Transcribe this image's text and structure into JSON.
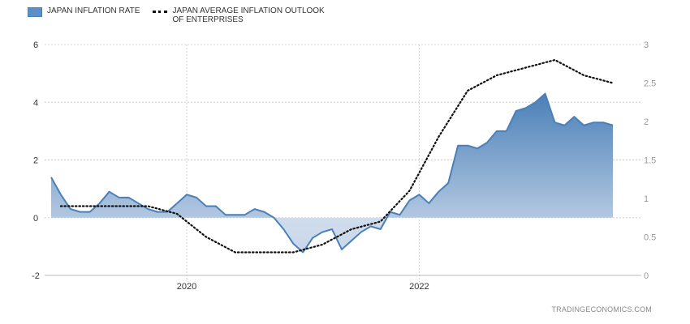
{
  "legend": {
    "series1_label": "JAPAN INFLATION RATE",
    "series2_label": "JAPAN AVERAGE INFLATION OUTLOOK\nOF ENTERPRISES"
  },
  "source": "TRADINGECONOMICS.COM",
  "colors": {
    "area_top": "#4a7fb8",
    "area_bottom": "#e8eef6",
    "line": "#4a7fb8",
    "dots": "#111111",
    "grid": "#cccccc"
  },
  "chart_data": {
    "type": "area",
    "x_range": [
      "2018-11",
      "2023-10"
    ],
    "x_ticks": [
      "2020",
      "2022"
    ],
    "y_left": {
      "range": [
        -2,
        6
      ],
      "ticks": [
        "-2",
        "0",
        "2",
        "4",
        "6"
      ]
    },
    "y_right": {
      "range": [
        0,
        3
      ],
      "ticks": [
        "0",
        "0.5",
        "1",
        "1.5",
        "2",
        "2.5",
        "3"
      ]
    },
    "grid": true,
    "legend_position": "top-left",
    "series": [
      {
        "name": "JAPAN INFLATION RATE",
        "axis": "left",
        "style": "area",
        "x": [
          "2018-11",
          "2018-12",
          "2019-01",
          "2019-02",
          "2019-03",
          "2019-04",
          "2019-05",
          "2019-06",
          "2019-07",
          "2019-08",
          "2019-09",
          "2019-10",
          "2019-11",
          "2019-12",
          "2020-01",
          "2020-02",
          "2020-03",
          "2020-04",
          "2020-05",
          "2020-06",
          "2020-07",
          "2020-08",
          "2020-09",
          "2020-10",
          "2020-11",
          "2020-12",
          "2021-01",
          "2021-02",
          "2021-03",
          "2021-04",
          "2021-05",
          "2021-06",
          "2021-07",
          "2021-08",
          "2021-09",
          "2021-10",
          "2021-11",
          "2021-12",
          "2022-01",
          "2022-02",
          "2022-03",
          "2022-04",
          "2022-05",
          "2022-06",
          "2022-07",
          "2022-08",
          "2022-09",
          "2022-10",
          "2022-11",
          "2022-12",
          "2023-01",
          "2023-02",
          "2023-03",
          "2023-04",
          "2023-05",
          "2023-06",
          "2023-07",
          "2023-08",
          "2023-09"
        ],
        "values": [
          1.4,
          0.8,
          0.3,
          0.2,
          0.2,
          0.5,
          0.9,
          0.7,
          0.7,
          0.5,
          0.3,
          0.2,
          0.2,
          0.5,
          0.8,
          0.7,
          0.4,
          0.4,
          0.1,
          0.1,
          0.1,
          0.3,
          0.2,
          0.0,
          -0.4,
          -0.9,
          -1.2,
          -0.7,
          -0.5,
          -0.4,
          -1.1,
          -0.8,
          -0.5,
          -0.3,
          -0.4,
          0.2,
          0.1,
          0.6,
          0.8,
          0.5,
          0.9,
          1.2,
          2.5,
          2.5,
          2.4,
          2.6,
          3.0,
          3.0,
          3.7,
          3.8,
          4.0,
          4.3,
          3.3,
          3.2,
          3.5,
          3.2,
          3.3,
          3.3,
          3.2
        ]
      },
      {
        "name": "JAPAN AVERAGE INFLATION OUTLOOK OF ENTERPRISES",
        "axis": "right",
        "style": "dotted-line",
        "x": [
          "2018-12",
          "2019-03",
          "2019-06",
          "2019-09",
          "2019-12",
          "2020-03",
          "2020-06",
          "2020-09",
          "2020-12",
          "2021-03",
          "2021-06",
          "2021-09",
          "2021-12",
          "2022-03",
          "2022-06",
          "2022-09",
          "2022-12",
          "2023-03",
          "2023-06",
          "2023-09"
        ],
        "values": [
          0.9,
          0.9,
          0.9,
          0.9,
          0.8,
          0.5,
          0.3,
          0.3,
          0.3,
          0.4,
          0.6,
          0.7,
          1.1,
          1.8,
          2.4,
          2.6,
          2.7,
          2.8,
          2.6,
          2.5
        ]
      }
    ]
  }
}
